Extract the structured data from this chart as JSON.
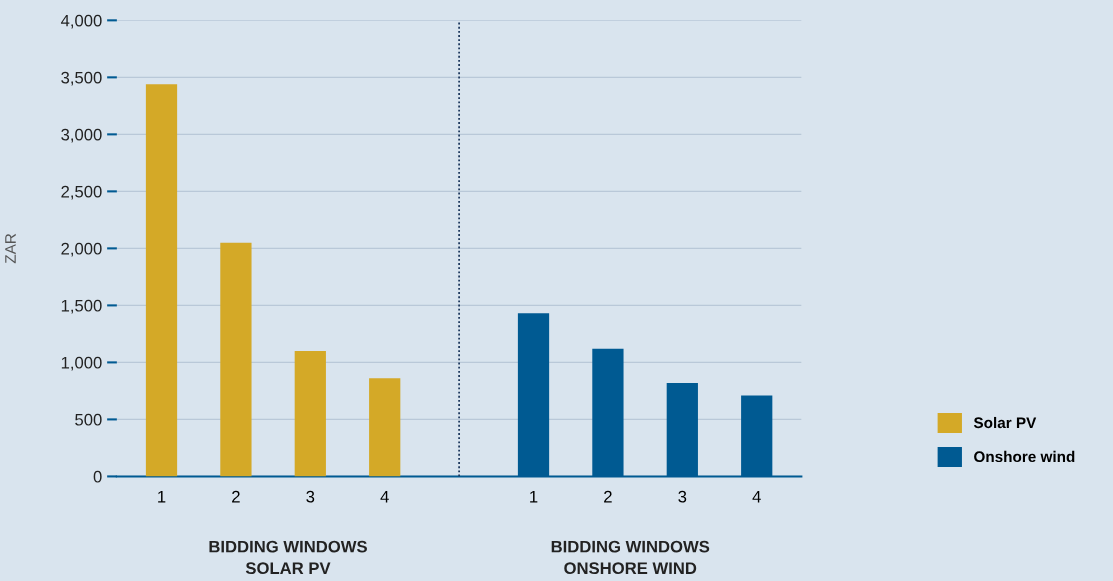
{
  "chart_data": {
    "type": "bar",
    "ylabel": "ZAR",
    "categories": [
      "1",
      "2",
      "3",
      "4",
      null,
      "1",
      "2",
      "3",
      "4"
    ],
    "series": [
      {
        "name": "Solar PV",
        "color": "#d4a927",
        "values": [
          3440,
          2050,
          1100,
          860,
          null,
          null,
          null,
          null,
          null
        ]
      },
      {
        "name": "Onshore wind",
        "color": "#005a92",
        "values": [
          null,
          null,
          null,
          null,
          null,
          1430,
          1120,
          820,
          710
        ]
      }
    ],
    "ylim": [
      0,
      4000
    ],
    "yticks": [
      {
        "value": 0,
        "label": "0"
      },
      {
        "value": 500,
        "label": "500"
      },
      {
        "value": 1000,
        "label": "1,000"
      },
      {
        "value": 1500,
        "label": "1,500"
      },
      {
        "value": 2000,
        "label": "2,000"
      },
      {
        "value": 2500,
        "label": "2,500"
      },
      {
        "value": 3000,
        "label": "3,000"
      },
      {
        "value": 3500,
        "label": "3,500"
      },
      {
        "value": 4000,
        "label": "4,000"
      }
    ],
    "grid": "y",
    "legend": "right",
    "annotations": [
      "BIDDING WINDOWS\nSOLAR PV",
      "BIDDING WINDOWS\nONSHORE WIND"
    ]
  }
}
